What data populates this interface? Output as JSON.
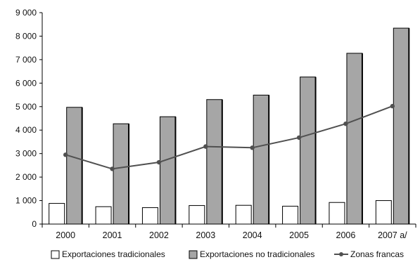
{
  "chart_data": {
    "type": "bar",
    "categories": [
      "2000",
      "2001",
      "2002",
      "2003",
      "2004",
      "2005",
      "2006",
      "2007 a/"
    ],
    "ylim": [
      0,
      9000
    ],
    "yticks": [
      0,
      1000,
      2000,
      3000,
      4000,
      5000,
      6000,
      7000,
      8000,
      9000
    ],
    "ytick_labels": [
      "0",
      "1 000",
      "2 000",
      "3 000",
      "4 000",
      "5 000",
      "6 000",
      "7 000",
      "8 000",
      "9 000"
    ],
    "grid": false,
    "legend_position": "bottom",
    "series": [
      {
        "name": "Exportaciones tradicionales",
        "type": "bar",
        "color": "#ffffff",
        "values": [
          880,
          740,
          700,
          790,
          800,
          760,
          920,
          1000
        ]
      },
      {
        "name": "Exportaciones no tradicionales",
        "type": "bar",
        "color": "#a6a6a6",
        "values": [
          4970,
          4270,
          4570,
          5300,
          5490,
          6260,
          7270,
          8340
        ]
      },
      {
        "name": "Zonas francas",
        "type": "line",
        "color": "#505050",
        "values": [
          2950,
          2350,
          2630,
          3300,
          3250,
          3680,
          4270,
          5020
        ]
      }
    ]
  }
}
